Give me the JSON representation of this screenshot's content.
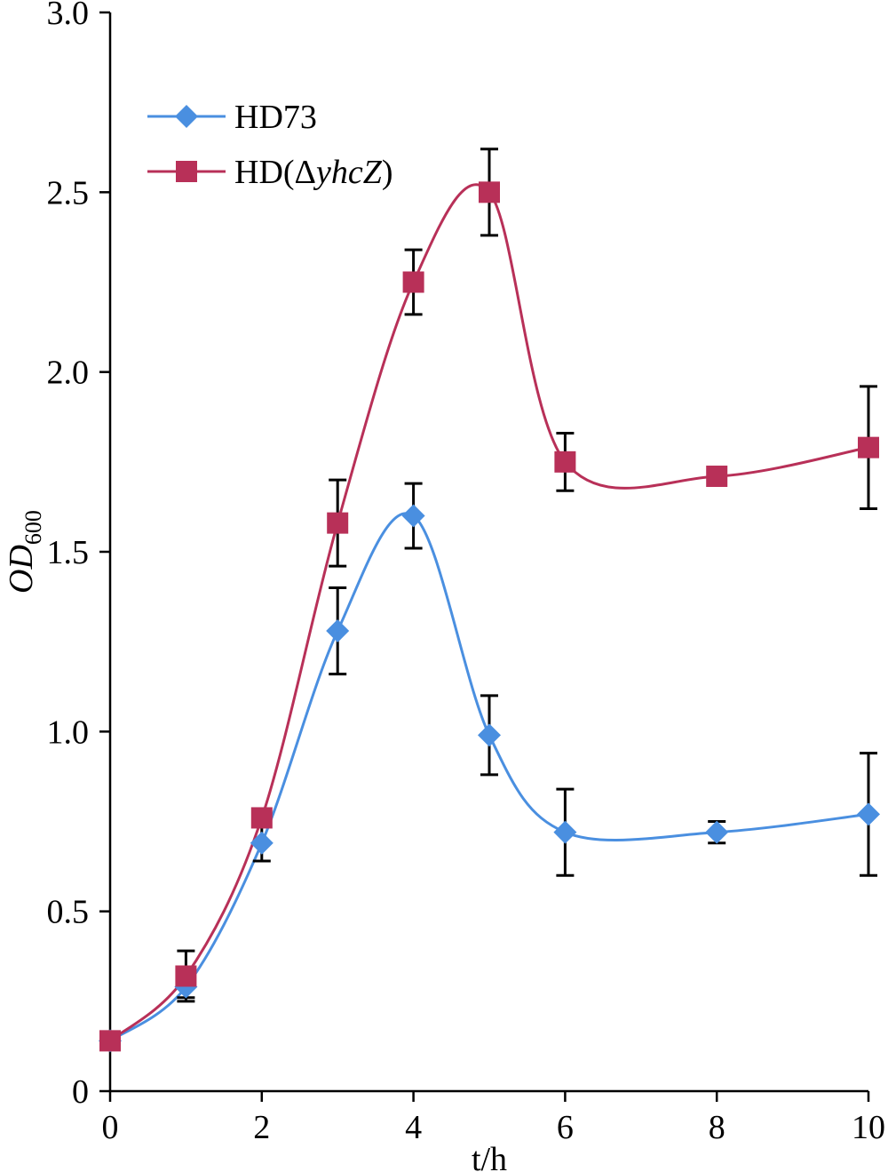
{
  "chart_data": {
    "type": "line",
    "title": "",
    "xlabel": "t/h",
    "ylabel": "OD",
    "ylabel_subscript": "600",
    "xlim": [
      0,
      10
    ],
    "ylim": [
      0,
      3.0
    ],
    "x_ticks": [
      0,
      2,
      4,
      6,
      8,
      10
    ],
    "x_tick_labels": [
      "0",
      "2",
      "4",
      "6",
      "8",
      "10"
    ],
    "y_ticks": [
      0,
      0.5,
      1.0,
      1.5,
      2.0,
      2.5,
      3.0
    ],
    "y_tick_labels": [
      "0",
      "0.5",
      "1.0",
      "1.5",
      "2.0",
      "2.5",
      "3.0"
    ],
    "grid": false,
    "legend_position": "top-left",
    "series": [
      {
        "name": "HD73",
        "legend_parts": [
          {
            "text": "HD73",
            "italic": false
          }
        ],
        "color": "#4a8fe0",
        "marker": "diamond",
        "x": [
          0,
          1,
          2,
          3,
          4,
          5,
          6,
          8,
          10
        ],
        "y": [
          0.14,
          0.29,
          0.69,
          1.28,
          1.6,
          0.99,
          0.72,
          0.72,
          0.77
        ],
        "error": [
          0.0,
          0.03,
          0.05,
          0.12,
          0.09,
          0.11,
          0.12,
          0.03,
          0.17
        ]
      },
      {
        "name": "HD(ΔyhcZ)",
        "legend_parts": [
          {
            "text": "HD(Δ",
            "italic": false
          },
          {
            "text": "yhcZ",
            "italic": true
          },
          {
            "text": ")",
            "italic": false
          }
        ],
        "color": "#b83058",
        "marker": "square",
        "x": [
          0,
          1,
          2,
          3,
          4,
          5,
          6,
          8,
          10
        ],
        "y": [
          0.14,
          0.32,
          0.76,
          1.58,
          2.25,
          2.5,
          1.75,
          1.71,
          1.79
        ],
        "error": [
          0.0,
          0.07,
          0.0,
          0.12,
          0.09,
          0.12,
          0.08,
          0.0,
          0.17
        ]
      }
    ]
  }
}
